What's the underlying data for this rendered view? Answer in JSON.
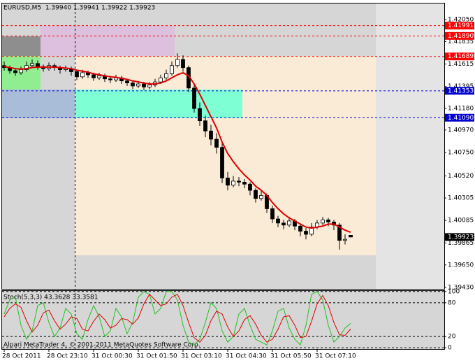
{
  "chart_data": [
    {
      "type": "candlestick",
      "title": "EURUSD,M5  1.39940 1.39941 1.39922 1.39923",
      "categories": [
        "28 Oct 2011",
        null,
        null,
        null,
        null,
        null,
        null,
        null,
        "28 Oct 23:10",
        null,
        null,
        null,
        null,
        null,
        null,
        null,
        "31 Oct 00:30",
        null,
        null,
        null,
        null,
        null,
        null,
        null,
        "31 Oct 01:50",
        null,
        null,
        null,
        null,
        null,
        null,
        null,
        "31 Oct 03:10",
        null,
        null,
        null,
        null,
        null,
        null,
        null,
        "31 Oct 04:30",
        null,
        null,
        null,
        null,
        null,
        null,
        null,
        "31 Oct 05:50",
        null,
        null,
        null,
        null,
        null,
        null,
        null,
        "31 Oct 07:10",
        null,
        null,
        null,
        null,
        null,
        null
      ],
      "ohlc": [
        [
          1.416,
          1.4164,
          1.4155,
          1.4158
        ],
        [
          1.4158,
          1.416,
          1.4152,
          1.4155
        ],
        [
          1.4155,
          1.4157,
          1.415,
          1.4153
        ],
        [
          1.4153,
          1.4159,
          1.4151,
          1.4156
        ],
        [
          1.4156,
          1.4164,
          1.4154,
          1.416
        ],
        [
          1.416,
          1.4166,
          1.4158,
          1.4162
        ],
        [
          1.4162,
          1.4165,
          1.4156,
          1.4159
        ],
        [
          1.4159,
          1.4161,
          1.4154,
          1.4157
        ],
        [
          1.4157,
          1.4163,
          1.4155,
          1.416
        ],
        [
          1.416,
          1.4162,
          1.4155,
          1.4158
        ],
        [
          1.4158,
          1.416,
          1.4152,
          1.4156
        ],
        [
          1.4156,
          1.416,
          1.4154,
          1.4157
        ],
        [
          1.4157,
          1.4159,
          1.415,
          1.4154
        ],
        [
          1.4154,
          1.4156,
          1.4146,
          1.4149
        ],
        [
          1.4149,
          1.4156,
          1.4147,
          1.4153
        ],
        [
          1.4153,
          1.4155,
          1.4148,
          1.4151
        ],
        [
          1.4151,
          1.4153,
          1.4145,
          1.4148
        ],
        [
          1.4148,
          1.4153,
          1.4146,
          1.415
        ],
        [
          1.415,
          1.4152,
          1.4144,
          1.4147
        ],
        [
          1.4147,
          1.415,
          1.4143,
          1.4146
        ],
        [
          1.4146,
          1.4151,
          1.4144,
          1.4148
        ],
        [
          1.4148,
          1.415,
          1.4142,
          1.4145
        ],
        [
          1.4145,
          1.4147,
          1.414,
          1.4143
        ],
        [
          1.4143,
          1.4145,
          1.4137,
          1.414
        ],
        [
          1.414,
          1.4145,
          1.4138,
          1.4142
        ],
        [
          1.4142,
          1.4144,
          1.4136,
          1.4139
        ],
        [
          1.4139,
          1.4144,
          1.4137,
          1.4141
        ],
        [
          1.4141,
          1.4147,
          1.4139,
          1.4144
        ],
        [
          1.4144,
          1.4151,
          1.4142,
          1.4148
        ],
        [
          1.4148,
          1.4156,
          1.4146,
          1.4152
        ],
        [
          1.4152,
          1.4164,
          1.415,
          1.416
        ],
        [
          1.416,
          1.4172,
          1.4158,
          1.4166
        ],
        [
          1.4166,
          1.417,
          1.4154,
          1.4158
        ],
        [
          1.4158,
          1.416,
          1.4134,
          1.4138
        ],
        [
          1.4138,
          1.4142,
          1.4114,
          1.4118
        ],
        [
          1.4118,
          1.4124,
          1.4101,
          1.4106
        ],
        [
          1.4106,
          1.4111,
          1.409,
          1.4096
        ],
        [
          1.4096,
          1.4102,
          1.4082,
          1.4088
        ],
        [
          1.4088,
          1.4094,
          1.4074,
          1.408
        ],
        [
          1.408,
          1.4084,
          1.4045,
          1.405
        ],
        [
          1.405,
          1.4056,
          1.4038,
          1.4043
        ],
        [
          1.4043,
          1.4052,
          1.4041,
          1.4047
        ],
        [
          1.4047,
          1.4051,
          1.4042,
          1.4046
        ],
        [
          1.4046,
          1.4049,
          1.404,
          1.4044
        ],
        [
          1.4044,
          1.4046,
          1.4033,
          1.4038
        ],
        [
          1.4038,
          1.404,
          1.4026,
          1.403
        ],
        [
          1.403,
          1.4037,
          1.4028,
          1.4033
        ],
        [
          1.4033,
          1.4035,
          1.4016,
          1.402
        ],
        [
          1.402,
          1.4023,
          1.4006,
          1.401
        ],
        [
          1.401,
          1.4013,
          1.4002,
          1.4006
        ],
        [
          1.4006,
          1.4009,
          1.4,
          1.4004
        ],
        [
          1.4004,
          1.4012,
          1.4002,
          1.4008
        ],
        [
          1.4008,
          1.401,
          1.3999,
          1.4003
        ],
        [
          1.4003,
          1.4005,
          1.3993,
          1.3998
        ],
        [
          1.3998,
          1.4001,
          1.399,
          1.3995
        ],
        [
          1.3995,
          1.4006,
          1.3993,
          1.4002
        ],
        [
          1.4002,
          1.4009,
          1.4,
          1.4006
        ],
        [
          1.4006,
          1.4012,
          1.4004,
          1.4009
        ],
        [
          1.4009,
          1.4011,
          1.4003,
          1.4007
        ],
        [
          1.4007,
          1.4009,
          1.3999,
          1.4004
        ],
        [
          1.4004,
          1.4006,
          1.398,
          1.3989
        ],
        [
          1.3989,
          1.3995,
          1.3985,
          1.399
        ],
        [
          1.3994,
          1.39941,
          1.39922,
          1.39923
        ]
      ],
      "ma": {
        "color": "#e00000",
        "values": [
          1.4159,
          1.4158,
          1.4157,
          1.41565,
          1.4157,
          1.4158,
          1.41585,
          1.41585,
          1.41585,
          1.41585,
          1.4158,
          1.41575,
          1.4157,
          1.41555,
          1.41545,
          1.41535,
          1.4152,
          1.4151,
          1.415,
          1.4149,
          1.41485,
          1.41475,
          1.41465,
          1.4145,
          1.4144,
          1.4143,
          1.4142,
          1.4142,
          1.4143,
          1.4145,
          1.4148,
          1.4151,
          1.4153,
          1.415,
          1.4142,
          1.4132,
          1.4121,
          1.411,
          1.4099,
          1.4085,
          1.4074,
          1.4066,
          1.4059,
          1.4053,
          1.4048,
          1.4042,
          1.4038,
          1.4033,
          1.4026,
          1.402,
          1.4015,
          1.4011,
          1.4008,
          1.4005,
          1.4002,
          1.4001,
          1.4002,
          1.4003,
          1.4005,
          1.4005,
          1.4002,
          1.3999,
          1.3997
        ]
      },
      "up_color": "#ffffff",
      "down_color": "#000000",
      "ylim": [
        1.39416,
        1.42207
      ],
      "yticks": [
        {
          "value": 1.4205,
          "label": "1.42050"
        },
        1.41835,
        1.41615,
        1.41395,
        {
          "value": 1.4118,
          "label": "1.41180"
        },
        {
          "value": 1.4097,
          "label": "1.40970"
        },
        {
          "value": 1.4075,
          "label": "1.40750"
        },
        {
          "value": 1.4052,
          "label": "1.40520"
        },
        1.40305,
        1.40085,
        1.39865,
        {
          "value": 1.3965,
          "label": "1.39650"
        },
        {
          "value": 1.3943,
          "label": "1.39430"
        }
      ],
      "levels": [
        {
          "value": 1.41991,
          "label": "1.41991",
          "color": "#ff0000"
        },
        {
          "value": 1.4189,
          "label": "1.41890",
          "color": "#ff0000"
        },
        {
          "value": 1.41689,
          "label": "1.41689",
          "color": "#ff0000"
        },
        {
          "value": 1.41353,
          "label": "1.41353",
          "color": "#0000d0"
        },
        {
          "value": 1.4109,
          "label": "1.41090",
          "color": "#0000d0"
        }
      ],
      "grid": false
    },
    {
      "type": "line",
      "title": "Stoch(5,3,3) 43.3628 33.3581",
      "series": [
        {
          "color": "#22c022",
          "values": [
            60,
            85,
            90,
            40,
            15,
            30,
            75,
            80,
            45,
            20,
            35,
            70,
            60,
            25,
            15,
            50,
            75,
            55,
            20,
            30,
            70,
            55,
            25,
            45,
            90,
            100,
            95,
            60,
            70,
            100,
            100,
            85,
            40,
            10,
            5,
            15,
            45,
            80,
            70,
            30,
            10,
            20,
            60,
            70,
            40,
            15,
            10,
            5,
            30,
            65,
            70,
            35,
            15,
            5,
            40,
            95,
            100,
            85,
            40,
            10,
            20,
            35,
            43.3628
          ]
        },
        {
          "color": "#e00000",
          "values": [
            55,
            70,
            78,
            72,
            48,
            28,
            40,
            62,
            67,
            48,
            33,
            42,
            55,
            52,
            33,
            30,
            47,
            60,
            50,
            35,
            40,
            52,
            50,
            42,
            53,
            78,
            95,
            85,
            75,
            78,
            90,
            95,
            75,
            45,
            18,
            10,
            22,
            48,
            65,
            60,
            37,
            20,
            30,
            50,
            57,
            42,
            22,
            10,
            15,
            33,
            55,
            57,
            40,
            18,
            20,
            47,
            78,
            93,
            75,
            45,
            23,
            22,
            33.3581
          ]
        }
      ],
      "ylim": [
        -1,
        101
      ],
      "yticks": [
        100,
        80,
        20,
        0
      ],
      "footer": "Alpari MetaTrader 4, © 2001-2011 MetaQuotes Software Corp."
    }
  ]
}
